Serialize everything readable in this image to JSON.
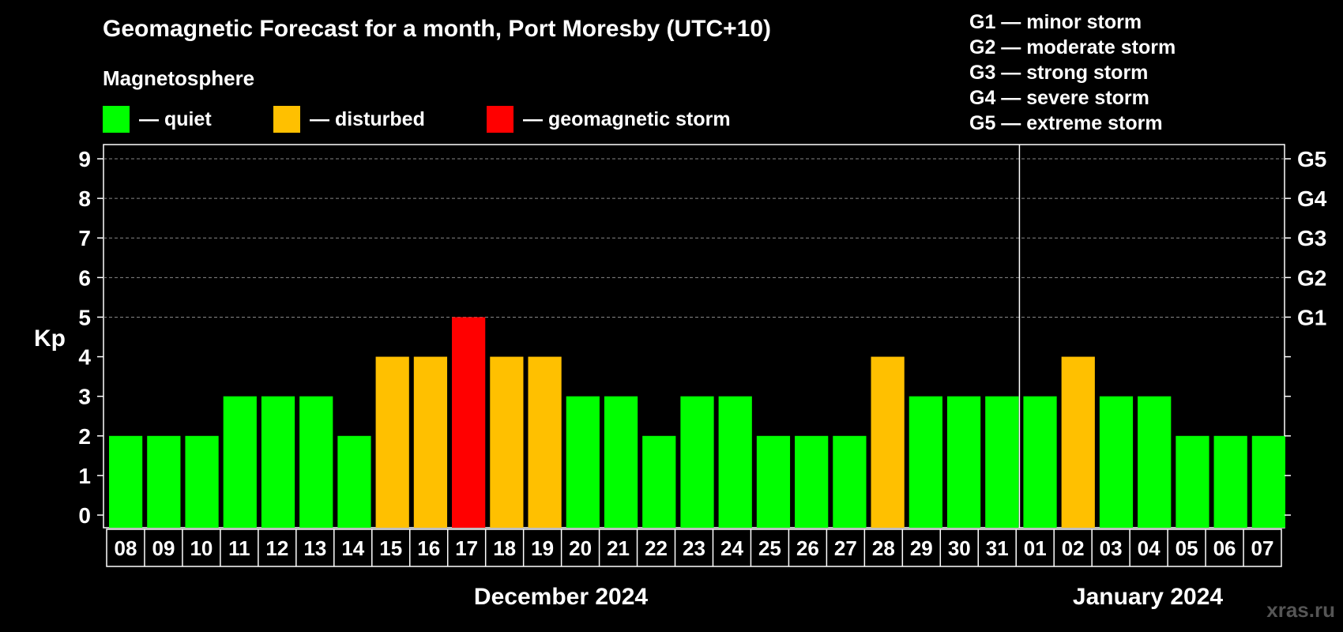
{
  "title": "Geomagnetic Forecast for a month, Port Moresby (UTC+10)",
  "subtitle": "Magnetosphere",
  "legend": [
    {
      "label": "— quiet",
      "color": "#00ff00"
    },
    {
      "label": "— disturbed",
      "color": "#ffc000"
    },
    {
      "label": "— geomagnetic storm",
      "color": "#ff0000"
    }
  ],
  "storm_scale": [
    "G1 — minor storm",
    "G2 — moderate storm",
    "G3 — strong storm",
    "G4 — severe storm",
    "G5 — extreme storm"
  ],
  "watermark": "xras.ru",
  "colors": {
    "quiet": "#00ff00",
    "disturbed": "#ffc000",
    "storm": "#ff0000",
    "grid": "#888888",
    "axis": "#ffffff"
  },
  "chart_data": {
    "type": "bar",
    "ylabel": "Kp",
    "ylim": [
      0,
      9
    ],
    "yticks": [
      "0",
      "1",
      "2",
      "3",
      "4",
      "5",
      "6",
      "7",
      "8",
      "9"
    ],
    "right_axis_labels": [
      {
        "kp": 5,
        "label": "G1"
      },
      {
        "kp": 6,
        "label": "G2"
      },
      {
        "kp": 7,
        "label": "G3"
      },
      {
        "kp": 8,
        "label": "G4"
      },
      {
        "kp": 9,
        "label": "G5"
      }
    ],
    "categories": [
      "08",
      "09",
      "10",
      "11",
      "12",
      "13",
      "14",
      "15",
      "16",
      "17",
      "18",
      "19",
      "20",
      "21",
      "22",
      "23",
      "24",
      "25",
      "26",
      "27",
      "28",
      "29",
      "30",
      "31",
      "01",
      "02",
      "03",
      "04",
      "05",
      "06",
      "07"
    ],
    "values": [
      2,
      2,
      2,
      3,
      3,
      3,
      2,
      4,
      4,
      5,
      4,
      4,
      3,
      3,
      2,
      3,
      3,
      2,
      2,
      2,
      4,
      3,
      3,
      3,
      3,
      4,
      3,
      3,
      2,
      2,
      2
    ],
    "months": [
      {
        "label": "December 2024",
        "start_index": 0,
        "count": 24
      },
      {
        "label": "January 2024",
        "start_index": 24,
        "count": 7
      }
    ],
    "grid": true
  }
}
